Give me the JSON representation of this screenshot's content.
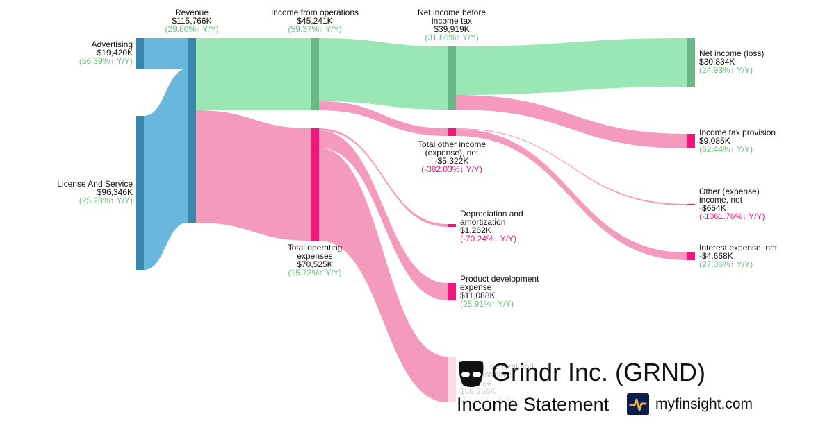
{
  "chart_data": {
    "type": "sankey",
    "title": "Grindr Inc. (GRND)",
    "subtitle": "Income Statement",
    "site": "myfinsight.com",
    "colors": {
      "revenue": "#69b7dd",
      "revenue_node": "#3a87ad",
      "profit": "#9ae6b4",
      "profit_node": "#6ab883",
      "expense": "#f49bbd",
      "expense_node": "#f0167a"
    },
    "nodes": [
      {
        "id": "adv",
        "name": "Advertising",
        "value": "$19,420K",
        "change": "(56.39%↑ Y/Y)",
        "dir": "up"
      },
      {
        "id": "lic",
        "name": "License And Service",
        "value": "$96,346K",
        "change": "(25.28%↑ Y/Y)",
        "dir": "up"
      },
      {
        "id": "rev",
        "name": "Revenue",
        "value": "$115,766K",
        "change": "(29.60%↑ Y/Y)",
        "dir": "up"
      },
      {
        "id": "ifo",
        "name": "Income from operations",
        "value": "$45,241K",
        "change": "(59.37%↑ Y/Y)",
        "dir": "up"
      },
      {
        "id": "opex",
        "name": "Total operating expenses",
        "value": "$70,525K",
        "change": "(15.73%↑ Y/Y)",
        "dir": "up"
      },
      {
        "id": "nibt",
        "name": "Net income before income tax",
        "value": "$39,919K",
        "change": "(31.86%↑ Y/Y)",
        "dir": "up"
      },
      {
        "id": "toi",
        "name": "Total other income (expense), net",
        "value": "-$5,322K",
        "change": "(-382.03%↓ Y/Y)",
        "dir": "down"
      },
      {
        "id": "da",
        "name": "Depreciation and amortization",
        "value": "$1,262K",
        "change": "(-70.24%↓ Y/Y)",
        "dir": "down"
      },
      {
        "id": "pd",
        "name": "Product development expense",
        "value": "$11,088K",
        "change": "(25.91%↑ Y/Y)",
        "dir": "up"
      },
      {
        "id": "sga",
        "name": "Selling, general and administrative expense",
        "value": "$58,256K",
        "change": "(17.14%↑ Y/Y)",
        "dir": "up"
      },
      {
        "id": "ni",
        "name": "Net income (loss)",
        "value": "$30,834K",
        "change": "(24.93%↑ Y/Y)",
        "dir": "up"
      },
      {
        "id": "tax",
        "name": "Income tax provision",
        "value": "$9,085K",
        "change": "(62.44%↑ Y/Y)",
        "dir": "up"
      },
      {
        "id": "oth",
        "name": "Other (expense) income, net",
        "value": "-$654K",
        "change": "(-1061.76%↓ Y/Y)",
        "dir": "down"
      },
      {
        "id": "int",
        "name": "Interest expense, net",
        "value": "-$4,668K",
        "change": "(27.06%↑ Y/Y)",
        "dir": "up"
      }
    ],
    "links": [
      {
        "source": "adv",
        "target": "rev",
        "value": 19420
      },
      {
        "source": "lic",
        "target": "rev",
        "value": 96346
      },
      {
        "source": "rev",
        "target": "ifo",
        "value": 45241
      },
      {
        "source": "rev",
        "target": "opex",
        "value": 70525
      },
      {
        "source": "ifo",
        "target": "nibt",
        "value": 39919
      },
      {
        "source": "ifo",
        "target": "toi",
        "value": 5322
      },
      {
        "source": "opex",
        "target": "da",
        "value": 1262
      },
      {
        "source": "opex",
        "target": "pd",
        "value": 11088
      },
      {
        "source": "opex",
        "target": "sga",
        "value": 58256
      },
      {
        "source": "nibt",
        "target": "ni",
        "value": 30834
      },
      {
        "source": "nibt",
        "target": "tax",
        "value": 9085
      },
      {
        "source": "toi",
        "target": "oth",
        "value": 654
      },
      {
        "source": "toi",
        "target": "int",
        "value": 4668
      }
    ]
  }
}
